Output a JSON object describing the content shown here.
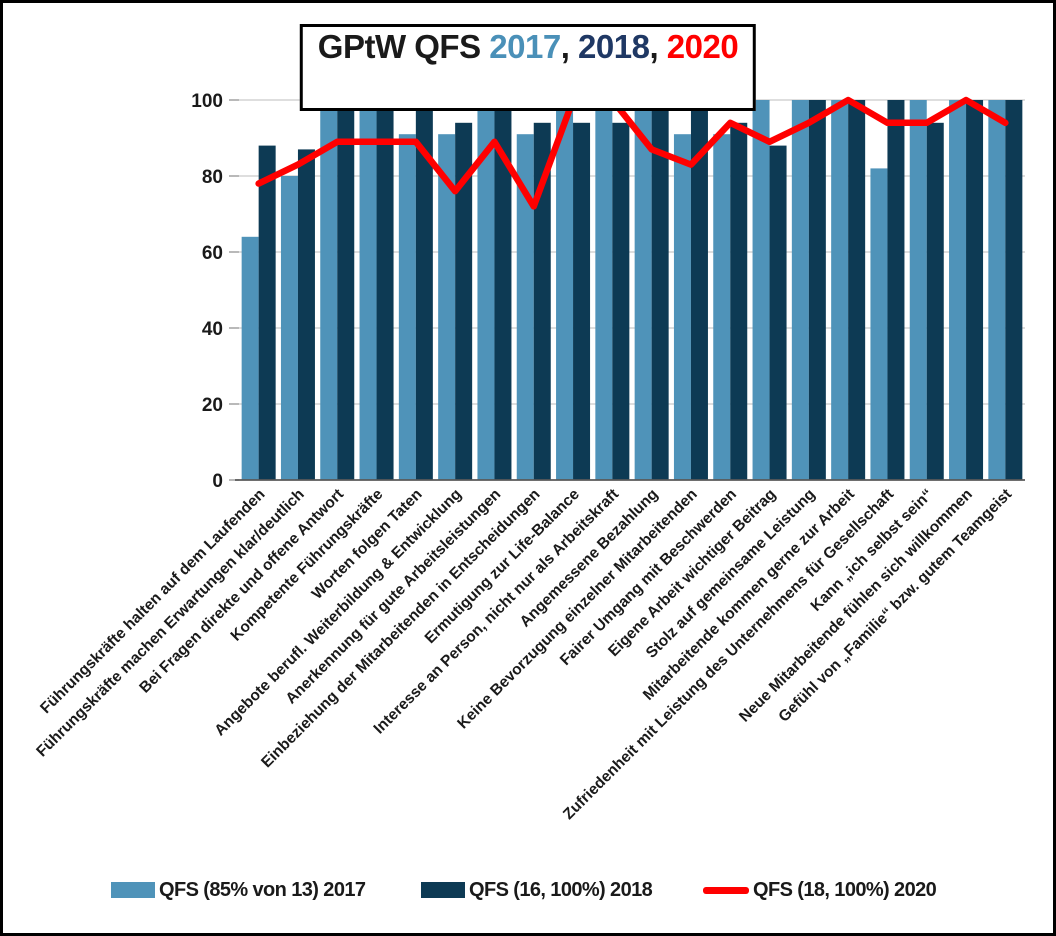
{
  "title": {
    "text_prefix": "GPtW QFS ",
    "sep": ", ",
    "years": [
      {
        "label": "2017",
        "color": "#4a90b8"
      },
      {
        "label": "2018",
        "color": "#1f3864"
      },
      {
        "label": "2020",
        "color": "#ff0000"
      }
    ]
  },
  "chart_data": {
    "type": "bar",
    "title": "GPtW QFS 2017, 2018, 2020",
    "categories": [
      "Führungskräfte halten auf dem Laufenden",
      "Führungskräfte machen Erwartungen klar/deutlich",
      "Bei Fragen direkte und offene Antwort",
      "Kompetente Führungskräfte",
      "Worten folgen Taten",
      "Angebote berufl. Weiterbildung & Entwicklung",
      "Anerkennung für gute Arbeitsleistungen",
      "Einbeziehung der Mitarbeitenden in Entscheidungen",
      "Ermutigung zur Life-Balance",
      "Interesse an Person, nicht nur als Arbeitskraft",
      "Angemessene Bezahlung",
      "Keine Bevorzugung einzelner Mitarbeitenden",
      "Fairer Umgang mit Beschwerden",
      "Eigene Arbeit wichtiger Beitrag",
      "Stolz auf gemeinsame Leistung",
      "Mitarbeitende kommen gerne zur Arbeit",
      "Zufriedenheit mit Leistung des Unternehmens für Gesellschaft",
      "Kann „ich selbst sein“",
      "Neue Mitarbeitende fühlen sich willkommen",
      "Gefühl von „Familie“ bzw. gutem Teamgeist"
    ],
    "series": [
      {
        "name": "QFS (85% von 13) 2017",
        "type": "bar",
        "color": "#4f93b9",
        "values": [
          64,
          80,
          100,
          100,
          91,
          91,
          100,
          91,
          100,
          100,
          100,
          91,
          91,
          100,
          100,
          100,
          82,
          100,
          100,
          100
        ]
      },
      {
        "name": "QFS (16, 100%) 2018",
        "type": "bar",
        "color": "#0d3a54",
        "values": [
          88,
          87,
          100,
          100,
          100,
          94,
          100,
          94,
          94,
          94,
          100,
          100,
          94,
          88,
          100,
          100,
          100,
          94,
          100,
          100
        ]
      },
      {
        "name": "QFS (18, 100%) 2020",
        "type": "line",
        "color": "#ff0000",
        "values": [
          78,
          83,
          89,
          89,
          89,
          76,
          89,
          72,
          100,
          100,
          87,
          83,
          94,
          89,
          94,
          100,
          94,
          94,
          100,
          94
        ]
      }
    ],
    "ylim": [
      0,
      100
    ],
    "yticks": [
      0,
      20,
      40,
      60,
      80,
      100
    ],
    "xlabel": "",
    "ylabel": "",
    "grid": true,
    "legend_position": "bottom"
  }
}
